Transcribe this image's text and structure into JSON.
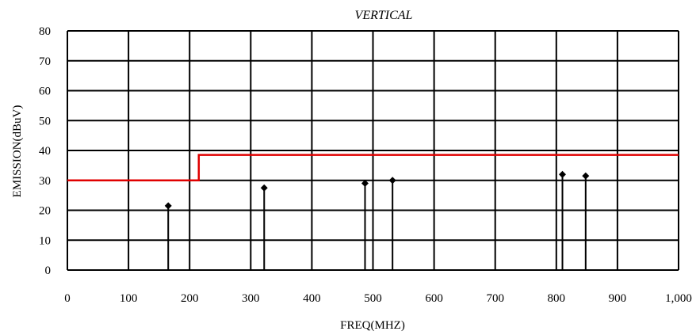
{
  "chart_data": {
    "type": "scatter",
    "title": "VERTICAL",
    "xlabel": "FREQ(MHZ)",
    "ylabel": "EMISSION(dBuV)",
    "xlim": [
      0,
      1000
    ],
    "ylim": [
      0,
      80
    ],
    "x_ticks": [
      0,
      100,
      200,
      300,
      400,
      500,
      600,
      700,
      800,
      900,
      1000
    ],
    "x_tick_labels": [
      "0",
      "100",
      "200",
      "300",
      "400",
      "500",
      "600",
      "700",
      "800",
      "900",
      "1,000"
    ],
    "y_ticks": [
      0,
      10,
      20,
      30,
      40,
      50,
      60,
      70,
      80
    ],
    "y_tick_labels": [
      "0",
      "10",
      "20",
      "30",
      "40",
      "50",
      "60",
      "70",
      "80"
    ],
    "grid": true,
    "limit_line": {
      "color": "#e00000",
      "points": [
        [
          0,
          30
        ],
        [
          215,
          30
        ],
        [
          215,
          38.5
        ],
        [
          1000,
          38.5
        ]
      ]
    },
    "series": [
      {
        "style": "stem",
        "color": "#000000",
        "points": [
          {
            "x": 165,
            "y": 21.5
          },
          {
            "x": 322,
            "y": 27.5
          },
          {
            "x": 487,
            "y": 29
          },
          {
            "x": 532,
            "y": 30
          },
          {
            "x": 810,
            "y": 32
          },
          {
            "x": 848,
            "y": 31.5
          }
        ]
      }
    ]
  }
}
